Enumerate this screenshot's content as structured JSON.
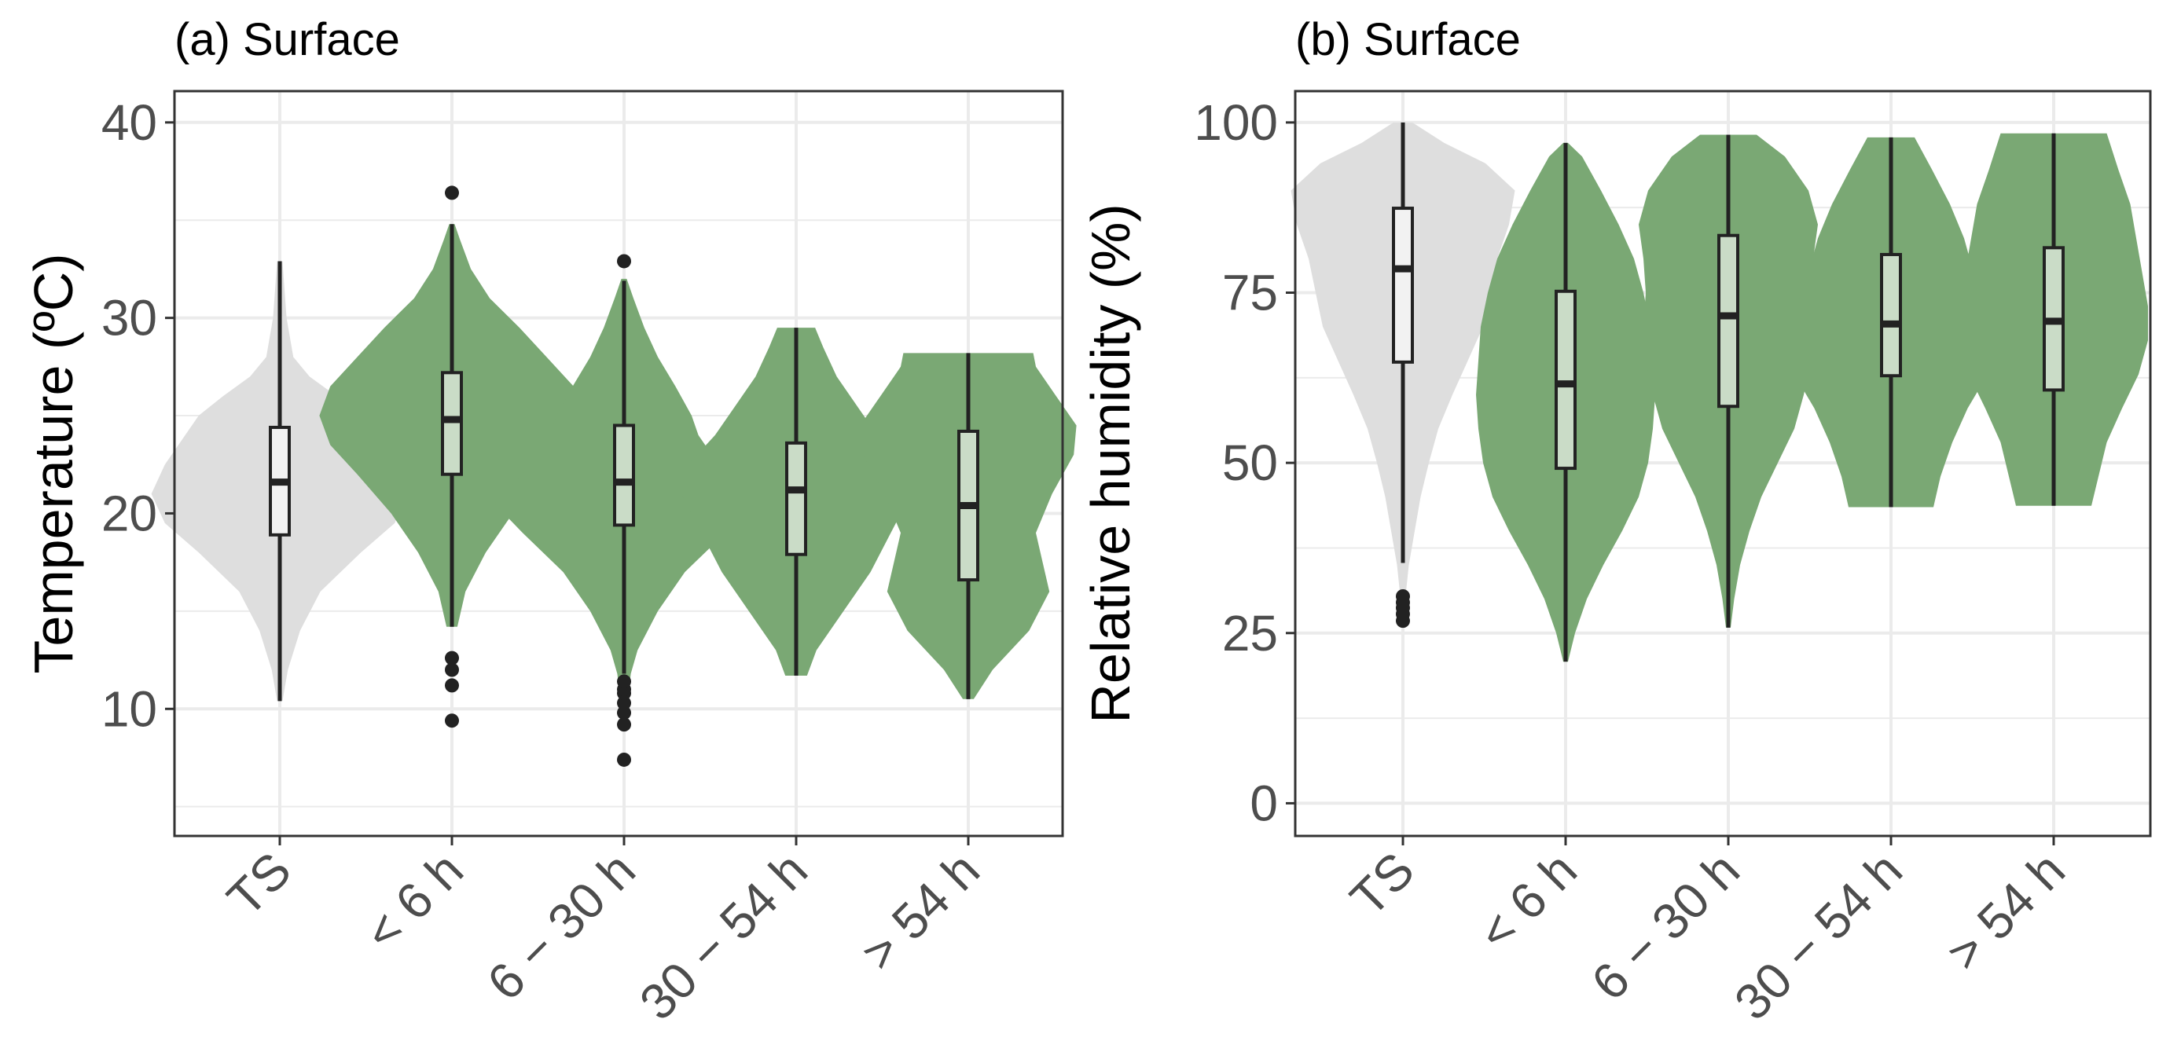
{
  "colors": {
    "reference_fill": "#dedede",
    "forecast_fill": "#7aa874",
    "box_line": "#222222",
    "tick_text": "#4d4d4d"
  },
  "chart_data": [
    {
      "type": "violin",
      "title": "(a) Surface",
      "xlabel": "",
      "ylabel": "Temperature (ºC)",
      "ylim": [
        3.5,
        41.6
      ],
      "yticks": [
        10,
        20,
        30,
        40
      ],
      "categories": [
        "TS",
        "< 6 h",
        "6 − 30 h",
        "30 − 54 h",
        "> 54 h"
      ],
      "series": [
        {
          "name": "TS",
          "color_role": "reference",
          "min": 10.4,
          "q1": 18.9,
          "median": 21.6,
          "q3": 24.4,
          "max": 32.9,
          "outliers": [],
          "density": [
            [
              10.4,
              0.02
            ],
            [
              12,
              0.06
            ],
            [
              14,
              0.15
            ],
            [
              16,
              0.3
            ],
            [
              18,
              0.6
            ],
            [
              19.5,
              0.85
            ],
            [
              21,
              0.95
            ],
            [
              22.5,
              0.85
            ],
            [
              24,
              0.7
            ],
            [
              25,
              0.6
            ],
            [
              26,
              0.42
            ],
            [
              27,
              0.22
            ],
            [
              28,
              0.1
            ],
            [
              30,
              0.05
            ],
            [
              32.9,
              0.02
            ]
          ]
        },
        {
          "name": "< 6 h",
          "color_role": "forecast",
          "min": 14.2,
          "q1": 22.0,
          "median": 24.8,
          "q3": 27.2,
          "max": 34.8,
          "outliers": [
            9.4,
            11.2,
            12.0,
            12.6,
            36.4
          ],
          "density": [
            [
              14.2,
              0.04
            ],
            [
              16,
              0.1
            ],
            [
              18,
              0.25
            ],
            [
              20,
              0.45
            ],
            [
              22,
              0.7
            ],
            [
              23.5,
              0.9
            ],
            [
              25,
              0.98
            ],
            [
              26.5,
              0.9
            ],
            [
              28,
              0.7
            ],
            [
              29.5,
              0.5
            ],
            [
              31,
              0.28
            ],
            [
              32.5,
              0.14
            ],
            [
              34,
              0.06
            ],
            [
              34.8,
              0.02
            ]
          ]
        },
        {
          "name": "6 − 30 h",
          "color_role": "forecast",
          "min": 11.8,
          "q1": 19.4,
          "median": 21.6,
          "q3": 24.5,
          "max": 31.9,
          "outliers": [
            7.4,
            9.2,
            9.8,
            10.3,
            10.8,
            11.0,
            11.4,
            32.9
          ],
          "density": [
            [
              9.5,
              0.01
            ],
            [
              11.8,
              0.05
            ],
            [
              13,
              0.1
            ],
            [
              15,
              0.25
            ],
            [
              17,
              0.45
            ],
            [
              19,
              0.75
            ],
            [
              20.5,
              0.96
            ],
            [
              22,
              0.75
            ],
            [
              24,
              0.55
            ],
            [
              25,
              0.5
            ],
            [
              26.5,
              0.38
            ],
            [
              28,
              0.25
            ],
            [
              29.5,
              0.15
            ],
            [
              31,
              0.07
            ],
            [
              32,
              0.02
            ]
          ]
        },
        {
          "name": "30 − 54 h",
          "color_role": "forecast",
          "min": 11.7,
          "q1": 17.9,
          "median": 21.2,
          "q3": 23.6,
          "max": 29.5,
          "outliers": [],
          "density": [
            [
              11.7,
              0.08
            ],
            [
              13,
              0.15
            ],
            [
              15,
              0.35
            ],
            [
              17,
              0.55
            ],
            [
              19,
              0.7
            ],
            [
              21,
              0.85
            ],
            [
              22.5,
              0.8
            ],
            [
              24,
              0.6
            ],
            [
              25.5,
              0.45
            ],
            [
              27,
              0.3
            ],
            [
              28.5,
              0.2
            ],
            [
              29.5,
              0.14
            ]
          ]
        },
        {
          "name": "> 54 h",
          "color_role": "forecast",
          "min": 10.5,
          "q1": 16.6,
          "median": 20.4,
          "q3": 24.2,
          "max": 28.2,
          "outliers": [],
          "density": [
            [
              10.5,
              0.04
            ],
            [
              12,
              0.18
            ],
            [
              14,
              0.45
            ],
            [
              16,
              0.6
            ],
            [
              17.5,
              0.55
            ],
            [
              19,
              0.5
            ],
            [
              21,
              0.62
            ],
            [
              23,
              0.78
            ],
            [
              24.5,
              0.8
            ],
            [
              26,
              0.65
            ],
            [
              27.5,
              0.5
            ],
            [
              28.2,
              0.48
            ]
          ]
        }
      ]
    },
    {
      "type": "violin",
      "title": "(b) Surface",
      "xlabel": "",
      "ylabel": "Relative humidity (%)",
      "ylim": [
        -4.8,
        104.6
      ],
      "yticks": [
        0,
        25,
        50,
        75,
        100
      ],
      "categories": [
        "TS",
        "< 6 h",
        "6 − 30 h",
        "30 − 54 h",
        "> 54 h"
      ],
      "series": [
        {
          "name": "TS",
          "color_role": "reference",
          "min": 35.3,
          "q1": 64.8,
          "median": 78.5,
          "q3": 87.4,
          "max": 100.0,
          "outliers": [
            26.8,
            27.8,
            28.7,
            29.5,
            30.4
          ],
          "density": [
            [
              26,
              0.01
            ],
            [
              30,
              0.02
            ],
            [
              35,
              0.05
            ],
            [
              40,
              0.1
            ],
            [
              45,
              0.15
            ],
            [
              50,
              0.22
            ],
            [
              55,
              0.3
            ],
            [
              60,
              0.42
            ],
            [
              65,
              0.55
            ],
            [
              70,
              0.68
            ],
            [
              75,
              0.74
            ],
            [
              80,
              0.8
            ],
            [
              85,
              0.9
            ],
            [
              90,
              0.95
            ],
            [
              94,
              0.7
            ],
            [
              97,
              0.35
            ],
            [
              100,
              0.08
            ]
          ]
        },
        {
          "name": "< 6 h",
          "color_role": "forecast",
          "min": 20.8,
          "q1": 49.2,
          "median": 61.6,
          "q3": 75.2,
          "max": 97.0,
          "outliers": [],
          "density": [
            [
              20.8,
              0.02
            ],
            [
              25,
              0.08
            ],
            [
              30,
              0.18
            ],
            [
              35,
              0.32
            ],
            [
              40,
              0.48
            ],
            [
              45,
              0.62
            ],
            [
              50,
              0.7
            ],
            [
              55,
              0.74
            ],
            [
              60,
              0.76
            ],
            [
              65,
              0.74
            ],
            [
              70,
              0.72
            ],
            [
              75,
              0.66
            ],
            [
              80,
              0.58
            ],
            [
              85,
              0.45
            ],
            [
              90,
              0.3
            ],
            [
              95,
              0.14
            ],
            [
              97,
              0.02
            ]
          ]
        },
        {
          "name": "6 − 30 h",
          "color_role": "forecast",
          "min": 25.8,
          "q1": 58.3,
          "median": 71.6,
          "q3": 83.4,
          "max": 98.2,
          "outliers": [],
          "density": [
            [
              25.8,
              0.02
            ],
            [
              30,
              0.05
            ],
            [
              35,
              0.1
            ],
            [
              40,
              0.18
            ],
            [
              45,
              0.28
            ],
            [
              50,
              0.42
            ],
            [
              55,
              0.56
            ],
            [
              60,
              0.64
            ],
            [
              65,
              0.7
            ],
            [
              70,
              0.72
            ],
            [
              75,
              0.7
            ],
            [
              80,
              0.72
            ],
            [
              85,
              0.76
            ],
            [
              90,
              0.68
            ],
            [
              95,
              0.48
            ],
            [
              98.2,
              0.24
            ]
          ]
        },
        {
          "name": "30 − 54 h",
          "color_role": "forecast",
          "min": 43.5,
          "q1": 62.8,
          "median": 70.4,
          "q3": 80.6,
          "max": 97.8,
          "outliers": [],
          "density": [
            [
              43.5,
              0.36
            ],
            [
              48,
              0.42
            ],
            [
              53,
              0.52
            ],
            [
              58,
              0.65
            ],
            [
              63,
              0.82
            ],
            [
              68,
              0.88
            ],
            [
              73,
              0.8
            ],
            [
              78,
              0.7
            ],
            [
              83,
              0.62
            ],
            [
              88,
              0.5
            ],
            [
              93,
              0.35
            ],
            [
              97.8,
              0.2
            ]
          ]
        },
        {
          "name": "> 54 h",
          "color_role": "forecast",
          "min": 43.7,
          "q1": 60.7,
          "median": 70.8,
          "q3": 81.6,
          "max": 98.4,
          "outliers": [],
          "density": [
            [
              43.7,
              0.32
            ],
            [
              48,
              0.38
            ],
            [
              53,
              0.45
            ],
            [
              58,
              0.58
            ],
            [
              63,
              0.72
            ],
            [
              68,
              0.8
            ],
            [
              73,
              0.8
            ],
            [
              78,
              0.75
            ],
            [
              83,
              0.7
            ],
            [
              88,
              0.65
            ],
            [
              93,
              0.55
            ],
            [
              98.4,
              0.45
            ]
          ]
        }
      ]
    }
  ]
}
